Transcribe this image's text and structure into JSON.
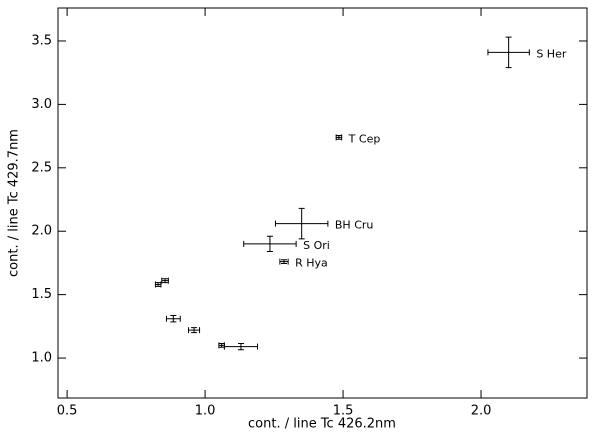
{
  "chart_data": {
    "type": "scatter",
    "xlabel": "cont. / line Tc 426.2nm",
    "ylabel": "cont. / line Tc 429.7nm",
    "x": [
      2.1,
      1.485,
      1.35,
      1.235,
      1.286,
      0.855,
      0.83,
      0.885,
      0.96,
      1.06,
      1.13
    ],
    "values": [
      3.41,
      2.74,
      2.06,
      1.9,
      1.76,
      1.61,
      1.58,
      1.31,
      1.22,
      1.1,
      1.09
    ],
    "xerr": [
      0.075,
      0.01,
      0.095,
      0.095,
      0.015,
      0.012,
      0.01,
      0.025,
      0.02,
      0.01,
      0.06
    ],
    "yerr": [
      0.12,
      0.015,
      0.12,
      0.06,
      0.015,
      0.015,
      0.015,
      0.025,
      0.02,
      0.015,
      0.025
    ],
    "labels": [
      "S Her",
      "T Cep",
      "BH Cru",
      "S Ori",
      "R Hya",
      null,
      null,
      null,
      null,
      null,
      null
    ],
    "color": "#000000",
    "xlim": [
      0.467,
      2.384
    ],
    "ylim": [
      0.685,
      3.76
    ],
    "xticks": [
      0.5,
      {
        "value": 1.0,
        "label": "1.0"
      },
      1.5,
      {
        "value": 2.0,
        "label": "2.0"
      }
    ],
    "yticks": [
      {
        "value": 1.0,
        "label": "1.0"
      },
      1.5,
      {
        "value": 2.0,
        "label": "2.0"
      },
      2.5,
      {
        "value": 3.0,
        "label": "3.0"
      },
      3.5
    ]
  }
}
